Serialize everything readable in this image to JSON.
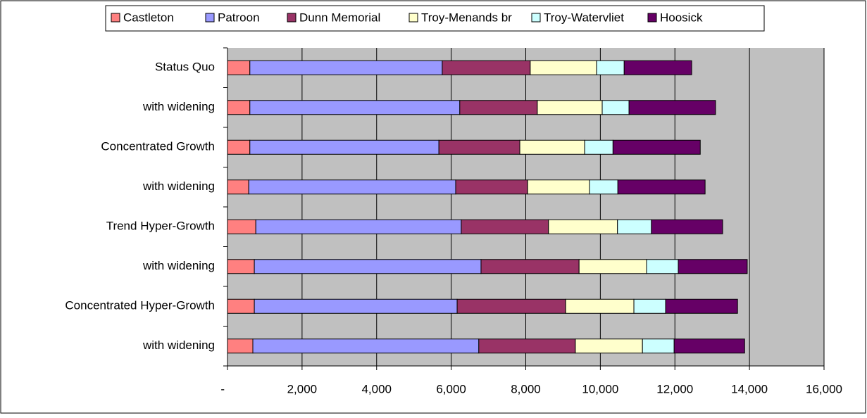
{
  "chart_data": {
    "type": "stacked-barh",
    "categories": [
      "Status Quo",
      "with widening",
      "Concentrated Growth",
      "with widening",
      "Trend Hyper-Growth",
      "with widening",
      "Concentrated Hyper-Growth",
      "with widening"
    ],
    "series": [
      {
        "name": "Castleton",
        "color": "#ff8080",
        "values": [
          600,
          600,
          600,
          570,
          760,
          720,
          720,
          680
        ]
      },
      {
        "name": "Patroon",
        "color": "#9999ff",
        "values": [
          5160,
          5630,
          5070,
          5550,
          5510,
          6080,
          5440,
          6060
        ]
      },
      {
        "name": "Dunn Memorial",
        "color": "#993366",
        "values": [
          2360,
          2080,
          2170,
          1930,
          2340,
          2630,
          2910,
          2590
        ]
      },
      {
        "name": "Troy-Menands br",
        "color": "#ffffcc",
        "values": [
          1780,
          1740,
          1740,
          1660,
          1850,
          1810,
          1830,
          1800
        ]
      },
      {
        "name": "Troy-Watervliet",
        "color": "#ccffff",
        "values": [
          740,
          720,
          760,
          760,
          910,
          850,
          850,
          850
        ]
      },
      {
        "name": "Hoosick",
        "color": "#660066",
        "values": [
          1810,
          2320,
          2340,
          2340,
          1910,
          1850,
          1930,
          1890
        ]
      }
    ],
    "xlim": [
      0,
      16000
    ],
    "xticks": [
      {
        "value": 0,
        "label": "-"
      },
      {
        "value": 2000,
        "label": "2,000"
      },
      {
        "value": 4000,
        "label": "4,000"
      },
      {
        "value": 6000,
        "label": "6,000"
      },
      {
        "value": 8000,
        "label": "8,000"
      },
      {
        "value": 10000,
        "label": "10,000"
      },
      {
        "value": 12000,
        "label": "12,000"
      },
      {
        "value": 14000,
        "label": "14,000"
      },
      {
        "value": 16000,
        "label": "16,000"
      }
    ],
    "grid": true,
    "legend": "top"
  }
}
